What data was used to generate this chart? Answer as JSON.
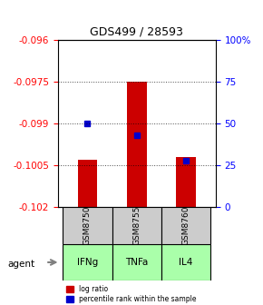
{
  "title": "GDS499 / 28593",
  "samples": [
    "GSM8750",
    "GSM8755",
    "GSM8760"
  ],
  "agents": [
    "IFNg",
    "TNFa",
    "IL4"
  ],
  "log_ratios": [
    -0.1003,
    -0.0975,
    -0.1002
  ],
  "percentile_ranks": [
    50,
    43,
    28
  ],
  "baseline": -0.102,
  "ylim_left": [
    -0.102,
    -0.096
  ],
  "ylim_right": [
    0,
    100
  ],
  "yticks_left": [
    -0.102,
    -0.1005,
    -0.099,
    -0.0975,
    -0.096
  ],
  "yticks_right": [
    0,
    25,
    50,
    75,
    100
  ],
  "bar_color": "#cc0000",
  "dot_color": "#0000cc",
  "sample_box_color": "#cccccc",
  "agent_box_color": "#aaffaa",
  "legend_bar_label": "log ratio",
  "legend_dot_label": "percentile rank within the sample",
  "agent_label": "agent"
}
